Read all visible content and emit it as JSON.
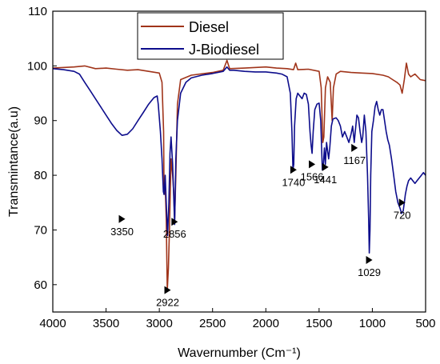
{
  "chart_data": {
    "type": "line",
    "xlabel": "Wavernumber (Cm⁻¹)",
    "ylabel": "Transmintance(a.u)",
    "xlim": [
      4000,
      500
    ],
    "ylim": [
      55,
      110
    ],
    "x_ticks": [
      4000,
      3500,
      3000,
      2500,
      2000,
      1500,
      1000,
      500
    ],
    "y_ticks": [
      60,
      70,
      80,
      90,
      100,
      110
    ],
    "legend_position": "top-center",
    "series": [
      {
        "name": "Diesel",
        "color": "#a0341a",
        "points": [
          [
            4000,
            99.6
          ],
          [
            3800,
            99.8
          ],
          [
            3700,
            100.0
          ],
          [
            3600,
            99.5
          ],
          [
            3500,
            99.6
          ],
          [
            3400,
            99.4
          ],
          [
            3300,
            99.2
          ],
          [
            3200,
            99.3
          ],
          [
            3100,
            99.0
          ],
          [
            3000,
            98.7
          ],
          [
            2975,
            97.0
          ],
          [
            2960,
            88.0
          ],
          [
            2955,
            76.5
          ],
          [
            2945,
            78.0
          ],
          [
            2935,
            72.0
          ],
          [
            2925,
            59.0
          ],
          [
            2915,
            63.0
          ],
          [
            2905,
            70.0
          ],
          [
            2890,
            83.0
          ],
          [
            2875,
            80.0
          ],
          [
            2865,
            77.0
          ],
          [
            2856,
            72.0
          ],
          [
            2845,
            80.0
          ],
          [
            2830,
            93.0
          ],
          [
            2800,
            97.5
          ],
          [
            2700,
            98.3
          ],
          [
            2500,
            98.8
          ],
          [
            2400,
            99.2
          ],
          [
            2365,
            101.0
          ],
          [
            2340,
            99.5
          ],
          [
            2200,
            99.6
          ],
          [
            2000,
            99.8
          ],
          [
            1900,
            99.6
          ],
          [
            1800,
            99.5
          ],
          [
            1740,
            99.3
          ],
          [
            1720,
            100.5
          ],
          [
            1700,
            99.3
          ],
          [
            1600,
            99.4
          ],
          [
            1500,
            99.0
          ],
          [
            1480,
            96.0
          ],
          [
            1465,
            86.0
          ],
          [
            1455,
            87.0
          ],
          [
            1440,
            96.0
          ],
          [
            1420,
            98.0
          ],
          [
            1395,
            97.0
          ],
          [
            1377,
            90.0
          ],
          [
            1365,
            96.0
          ],
          [
            1340,
            98.5
          ],
          [
            1300,
            99.0
          ],
          [
            1200,
            98.8
          ],
          [
            1100,
            98.7
          ],
          [
            1000,
            98.6
          ],
          [
            900,
            98.3
          ],
          [
            850,
            98.0
          ],
          [
            810,
            97.5
          ],
          [
            770,
            97.0
          ],
          [
            740,
            96.5
          ],
          [
            720,
            95.0
          ],
          [
            700,
            97.5
          ],
          [
            680,
            100.5
          ],
          [
            660,
            98.5
          ],
          [
            640,
            98.0
          ],
          [
            600,
            98.5
          ],
          [
            550,
            97.5
          ],
          [
            500,
            97.3
          ]
        ]
      },
      {
        "name": "J-Biodiesel",
        "color": "#0d0d8c",
        "points": [
          [
            4000,
            99.5
          ],
          [
            3900,
            99.3
          ],
          [
            3800,
            99.0
          ],
          [
            3750,
            98.5
          ],
          [
            3700,
            97.0
          ],
          [
            3650,
            95.5
          ],
          [
            3600,
            94.0
          ],
          [
            3550,
            92.5
          ],
          [
            3500,
            91.0
          ],
          [
            3450,
            89.5
          ],
          [
            3400,
            88.2
          ],
          [
            3350,
            87.3
          ],
          [
            3300,
            87.5
          ],
          [
            3250,
            88.5
          ],
          [
            3200,
            90.0
          ],
          [
            3150,
            91.5
          ],
          [
            3100,
            93.0
          ],
          [
            3050,
            94.2
          ],
          [
            3020,
            94.5
          ],
          [
            3010,
            93.0
          ],
          [
            2990,
            88.0
          ],
          [
            2975,
            83.0
          ],
          [
            2962,
            77.0
          ],
          [
            2955,
            76.5
          ],
          [
            2945,
            80.0
          ],
          [
            2935,
            75.0
          ],
          [
            2922,
            69.0
          ],
          [
            2910,
            75.0
          ],
          [
            2900,
            84.0
          ],
          [
            2890,
            87.0
          ],
          [
            2875,
            82.0
          ],
          [
            2856,
            71.0
          ],
          [
            2845,
            83.0
          ],
          [
            2830,
            90.0
          ],
          [
            2800,
            95.0
          ],
          [
            2750,
            97.0
          ],
          [
            2700,
            97.8
          ],
          [
            2600,
            98.3
          ],
          [
            2500,
            98.6
          ],
          [
            2400,
            99.0
          ],
          [
            2365,
            99.8
          ],
          [
            2340,
            99.2
          ],
          [
            2300,
            99.2
          ],
          [
            2200,
            99.0
          ],
          [
            2100,
            98.9
          ],
          [
            2000,
            98.9
          ],
          [
            1900,
            98.7
          ],
          [
            1850,
            98.5
          ],
          [
            1800,
            98.0
          ],
          [
            1770,
            95.0
          ],
          [
            1755,
            88.0
          ],
          [
            1745,
            81.0
          ],
          [
            1738,
            82.0
          ],
          [
            1730,
            89.0
          ],
          [
            1715,
            94.0
          ],
          [
            1700,
            95.0
          ],
          [
            1680,
            94.5
          ],
          [
            1660,
            94.0
          ],
          [
            1640,
            95.0
          ],
          [
            1620,
            94.8
          ],
          [
            1600,
            93.0
          ],
          [
            1585,
            88.0
          ],
          [
            1575,
            85.5
          ],
          [
            1566,
            84.0
          ],
          [
            1555,
            88.0
          ],
          [
            1540,
            92.0
          ],
          [
            1520,
            93.0
          ],
          [
            1500,
            93.2
          ],
          [
            1485,
            90.0
          ],
          [
            1470,
            81.0
          ],
          [
            1460,
            82.0
          ],
          [
            1450,
            85.0
          ],
          [
            1441,
            82.0
          ],
          [
            1430,
            86.0
          ],
          [
            1420,
            84.5
          ],
          [
            1410,
            83.0
          ],
          [
            1400,
            85.0
          ],
          [
            1385,
            89.0
          ],
          [
            1370,
            90.3
          ],
          [
            1340,
            90.5
          ],
          [
            1320,
            90.0
          ],
          [
            1300,
            89.0
          ],
          [
            1280,
            87.0
          ],
          [
            1260,
            88.0
          ],
          [
            1240,
            87.0
          ],
          [
            1220,
            86.0
          ],
          [
            1200,
            87.5
          ],
          [
            1185,
            89.0
          ],
          [
            1170,
            86.0
          ],
          [
            1160,
            88.0
          ],
          [
            1145,
            91.0
          ],
          [
            1130,
            90.5
          ],
          [
            1115,
            88.0
          ],
          [
            1100,
            86.0
          ],
          [
            1090,
            87.0
          ],
          [
            1075,
            91.0
          ],
          [
            1060,
            88.0
          ],
          [
            1045,
            80.0
          ],
          [
            1035,
            72.0
          ],
          [
            1029,
            65.8
          ],
          [
            1022,
            70.0
          ],
          [
            1015,
            80.0
          ],
          [
            1005,
            88.0
          ],
          [
            990,
            90.0
          ],
          [
            975,
            92.5
          ],
          [
            960,
            93.5
          ],
          [
            945,
            92.0
          ],
          [
            930,
            91.0
          ],
          [
            915,
            92.0
          ],
          [
            900,
            92.0
          ],
          [
            885,
            90.0
          ],
          [
            870,
            88.0
          ],
          [
            855,
            86.5
          ],
          [
            840,
            85.5
          ],
          [
            820,
            83.0
          ],
          [
            800,
            80.0
          ],
          [
            780,
            77.0
          ],
          [
            760,
            75.0
          ],
          [
            740,
            74.0
          ],
          [
            725,
            73.0
          ],
          [
            710,
            73.5
          ],
          [
            700,
            75.0
          ],
          [
            690,
            76.5
          ],
          [
            675,
            78.0
          ],
          [
            660,
            79.0
          ],
          [
            640,
            79.5
          ],
          [
            620,
            79.0
          ],
          [
            600,
            78.5
          ],
          [
            580,
            79.0
          ],
          [
            560,
            79.5
          ],
          [
            540,
            80.0
          ],
          [
            520,
            80.5
          ],
          [
            500,
            80.0
          ]
        ]
      }
    ],
    "annotations": [
      {
        "label": "3350",
        "x": 3350,
        "y": 72.0
      },
      {
        "label": "2922",
        "x": 2922,
        "y": 59.0
      },
      {
        "label": "2856",
        "x": 2856,
        "y": 71.5
      },
      {
        "label": "1740",
        "x": 1740,
        "y": 81.0
      },
      {
        "label": "1566",
        "x": 1566,
        "y": 82.0
      },
      {
        "label": "1441",
        "x": 1441,
        "y": 81.5
      },
      {
        "label": "1167",
        "x": 1167,
        "y": 85.0
      },
      {
        "label": "1029",
        "x": 1029,
        "y": 64.5
      },
      {
        "label": "720",
        "x": 720,
        "y": 75.0
      }
    ]
  }
}
